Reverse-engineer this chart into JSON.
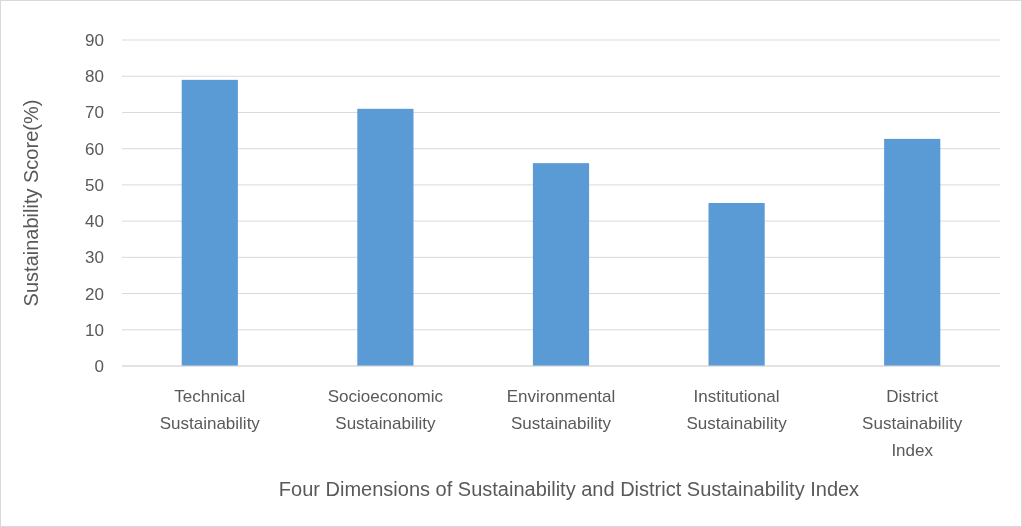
{
  "chart_data": {
    "type": "bar",
    "xlabel": "Four Dimensions of Sustainability and District Sustainability Index",
    "ylabel": "Sustainability Score(%)",
    "categories": [
      "Technical Sustainability",
      "Socioeconomic Sustainability",
      "Environmental Sustainability",
      "Institutional Sustainability",
      "District Sustainability Index"
    ],
    "values": [
      79,
      71,
      56,
      45,
      62.7
    ],
    "color": "#5b9bd5",
    "ylim": [
      0,
      90
    ],
    "yticks": [
      0,
      10,
      20,
      30,
      40,
      50,
      60,
      70,
      80,
      90
    ],
    "grid": "y"
  }
}
